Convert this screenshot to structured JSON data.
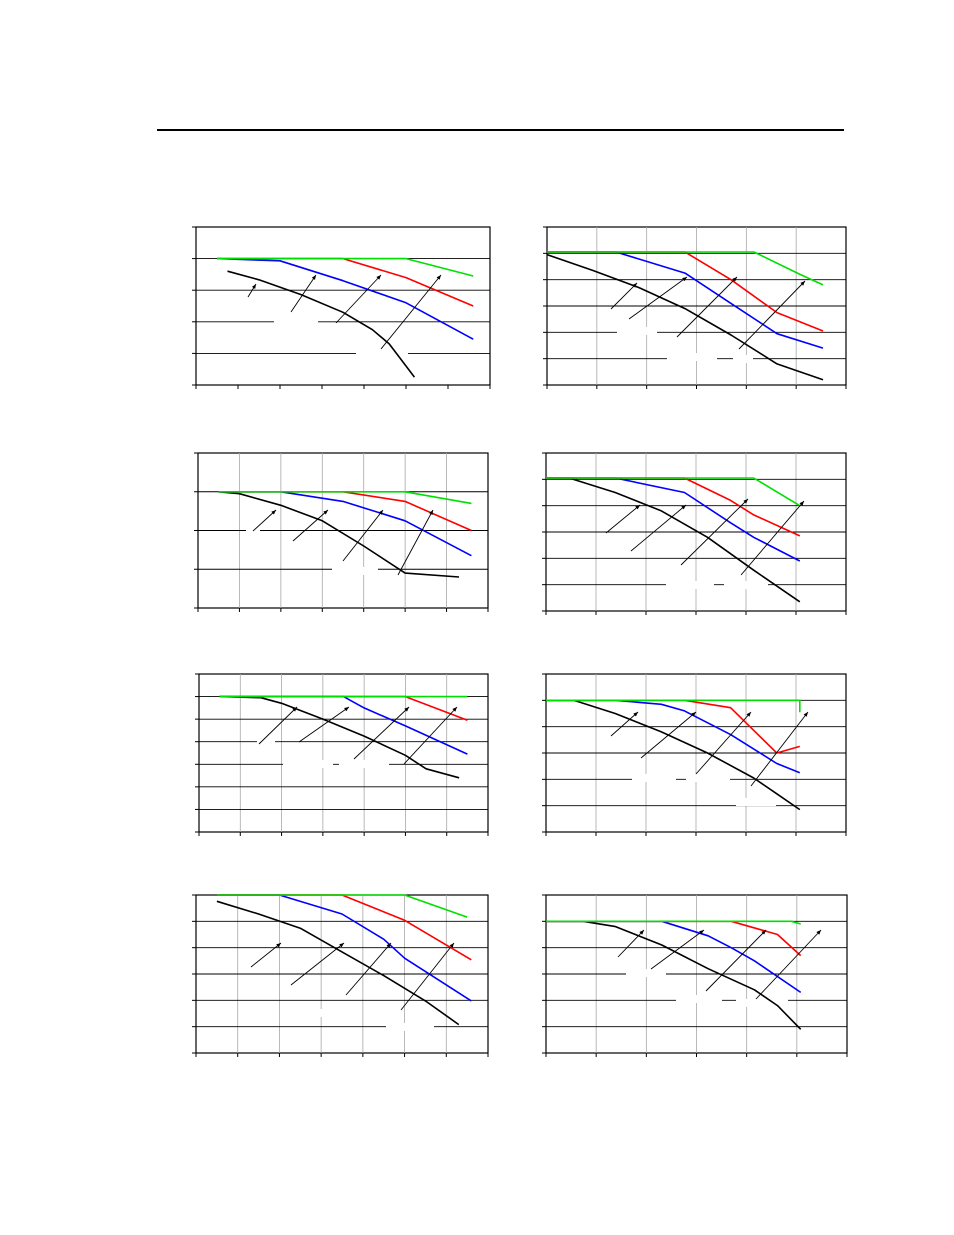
{
  "colors": {
    "black_series": "#000000",
    "blue_series": "#0000ff",
    "red_series": "#ff0000",
    "green_series": "#00e000",
    "grid": "#000000",
    "vertical_grid": "#a8a8a8"
  },
  "chart_data": [
    {
      "type": "line",
      "title": "",
      "xlabel": "",
      "ylabel": "",
      "xlim": [
        0,
        7
      ],
      "ylim": [
        0,
        5
      ],
      "x_ticks": 7,
      "y_ticks": 5,
      "grid": "horizontal",
      "legend": "none",
      "series": [
        {
          "color": "#000000",
          "points": [
            [
              0.75,
              3.6
            ],
            [
              1.5,
              3.33
            ],
            [
              2.5,
              2.86
            ],
            [
              3.5,
              2.3
            ],
            [
              4.2,
              1.75
            ],
            [
              4.6,
              1.3
            ],
            [
              5.0,
              0.6
            ],
            [
              5.2,
              0.25
            ]
          ]
        },
        {
          "color": "#0000ff",
          "points": [
            [
              0.5,
              4.0
            ],
            [
              2.0,
              3.93
            ],
            [
              3.5,
              3.3
            ],
            [
              5.0,
              2.6
            ],
            [
              6.6,
              1.45
            ]
          ]
        },
        {
          "color": "#ff0000",
          "points": [
            [
              0.5,
              4.0
            ],
            [
              3.5,
              4.0
            ],
            [
              5.0,
              3.4
            ],
            [
              6.6,
              2.5
            ]
          ]
        },
        {
          "color": "#00e000",
          "points": [
            [
              0.5,
              4.0
            ],
            [
              5.0,
              4.0
            ],
            [
              6.6,
              3.45
            ]
          ]
        }
      ]
    },
    {
      "type": "line",
      "title": "",
      "xlabel": "",
      "ylabel": "",
      "xlim": [
        0,
        6.5
      ],
      "ylim": [
        0,
        6
      ],
      "x_ticks": 6,
      "y_ticks": 6,
      "grid": "both",
      "legend": "none",
      "series": [
        {
          "color": "#000000",
          "points": [
            [
              0.0,
              4.95
            ],
            [
              1.0,
              4.35
            ],
            [
              2.0,
              3.7
            ],
            [
              3.0,
              2.9
            ],
            [
              4.0,
              1.9
            ],
            [
              5.0,
              0.8
            ],
            [
              6.0,
              0.2
            ]
          ]
        },
        {
          "color": "#0000ff",
          "points": [
            [
              0.0,
              5.05
            ],
            [
              1.5,
              5.05
            ],
            [
              3.0,
              4.25
            ],
            [
              4.0,
              3.1
            ],
            [
              5.0,
              1.95
            ],
            [
              6.0,
              1.4
            ]
          ]
        },
        {
          "color": "#ff0000",
          "points": [
            [
              0.0,
              5.05
            ],
            [
              3.0,
              5.05
            ],
            [
              4.0,
              4.0
            ],
            [
              5.0,
              2.75
            ],
            [
              6.0,
              2.05
            ]
          ]
        },
        {
          "color": "#00e000",
          "points": [
            [
              0.0,
              5.05
            ],
            [
              4.5,
              5.05
            ],
            [
              5.5,
              4.2
            ],
            [
              6.0,
              3.8
            ]
          ]
        }
      ]
    },
    {
      "type": "line",
      "title": "",
      "xlabel": "",
      "ylabel": "",
      "xlim": [
        0,
        7
      ],
      "ylim": [
        0,
        4
      ],
      "x_ticks": 7,
      "y_ticks": 4,
      "grid": "both",
      "legend": "none",
      "series": [
        {
          "color": "#000000",
          "points": [
            [
              0.5,
              3.0
            ],
            [
              1.0,
              2.95
            ],
            [
              2.0,
              2.65
            ],
            [
              3.0,
              2.25
            ],
            [
              4.0,
              1.6
            ],
            [
              5.0,
              0.9
            ],
            [
              6.3,
              0.8
            ]
          ]
        },
        {
          "color": "#0000ff",
          "points": [
            [
              0.5,
              3.0
            ],
            [
              2.0,
              3.0
            ],
            [
              3.5,
              2.75
            ],
            [
              5.0,
              2.25
            ],
            [
              6.6,
              1.35
            ]
          ]
        },
        {
          "color": "#ff0000",
          "points": [
            [
              0.5,
              3.0
            ],
            [
              3.5,
              3.0
            ],
            [
              5.0,
              2.75
            ],
            [
              6.6,
              2.0
            ]
          ]
        },
        {
          "color": "#00e000",
          "points": [
            [
              0.5,
              3.0
            ],
            [
              5.0,
              3.0
            ],
            [
              6.6,
              2.7
            ]
          ]
        }
      ]
    },
    {
      "type": "line",
      "title": "",
      "xlabel": "",
      "ylabel": "",
      "xlim": [
        0,
        6.5
      ],
      "ylim": [
        0,
        6
      ],
      "x_ticks": 6,
      "y_ticks": 6,
      "grid": "both",
      "legend": "none",
      "series": [
        {
          "color": "#000000",
          "points": [
            [
              0.0,
              5.05
            ],
            [
              0.5,
              5.05
            ],
            [
              1.5,
              4.5
            ],
            [
              2.5,
              3.8
            ],
            [
              3.5,
              2.8
            ],
            [
              4.5,
              1.55
            ],
            [
              5.5,
              0.35
            ]
          ]
        },
        {
          "color": "#0000ff",
          "points": [
            [
              0.0,
              5.05
            ],
            [
              1.5,
              5.05
            ],
            [
              3.0,
              4.5
            ],
            [
              4.0,
              3.35
            ],
            [
              4.5,
              2.8
            ],
            [
              5.5,
              1.9
            ]
          ]
        },
        {
          "color": "#ff0000",
          "points": [
            [
              0.0,
              5.05
            ],
            [
              3.0,
              5.05
            ],
            [
              4.0,
              4.2
            ],
            [
              4.5,
              3.65
            ],
            [
              5.5,
              2.85
            ]
          ]
        },
        {
          "color": "#00e000",
          "points": [
            [
              0.0,
              5.05
            ],
            [
              4.5,
              5.05
            ],
            [
              5.5,
              4.0
            ]
          ]
        }
      ]
    },
    {
      "type": "line",
      "title": "",
      "xlabel": "",
      "ylabel": "",
      "xlim": [
        0,
        7
      ],
      "ylim": [
        0,
        7
      ],
      "x_ticks": 7,
      "y_ticks": 7,
      "grid": "both",
      "legend": "none",
      "series": [
        {
          "color": "#000000",
          "points": [
            [
              0.5,
              6.0
            ],
            [
              1.5,
              5.95
            ],
            [
              2.0,
              5.7
            ],
            [
              3.0,
              5.0
            ],
            [
              4.0,
              4.25
            ],
            [
              5.0,
              3.4
            ],
            [
              5.5,
              2.8
            ],
            [
              6.3,
              2.4
            ]
          ]
        },
        {
          "color": "#0000ff",
          "points": [
            [
              0.5,
              6.0
            ],
            [
              3.5,
              6.0
            ],
            [
              4.0,
              5.5
            ],
            [
              5.0,
              4.7
            ],
            [
              6.5,
              3.45
            ]
          ]
        },
        {
          "color": "#ff0000",
          "points": [
            [
              0.5,
              6.0
            ],
            [
              5.0,
              6.0
            ],
            [
              6.5,
              4.95
            ]
          ]
        },
        {
          "color": "#00e000",
          "points": [
            [
              0.5,
              6.0
            ],
            [
              6.5,
              6.0
            ]
          ]
        }
      ]
    },
    {
      "type": "line",
      "title": "",
      "xlabel": "",
      "ylabel": "",
      "xlim": [
        0,
        6.5
      ],
      "ylim": [
        0,
        6
      ],
      "x_ticks": 6,
      "y_ticks": 6,
      "grid": "both",
      "legend": "none",
      "series": [
        {
          "color": "#000000",
          "points": [
            [
              0.0,
              5.0
            ],
            [
              0.6,
              5.0
            ],
            [
              1.5,
              4.5
            ],
            [
              2.5,
              3.8
            ],
            [
              3.5,
              3.0
            ],
            [
              4.5,
              2.05
            ],
            [
              5.0,
              1.45
            ],
            [
              5.5,
              0.85
            ]
          ]
        },
        {
          "color": "#0000ff",
          "points": [
            [
              0.0,
              5.0
            ],
            [
              1.5,
              5.0
            ],
            [
              2.5,
              4.85
            ],
            [
              3.0,
              4.6
            ],
            [
              4.0,
              3.7
            ],
            [
              5.0,
              2.6
            ],
            [
              5.5,
              2.25
            ]
          ]
        },
        {
          "color": "#ff0000",
          "points": [
            [
              0.0,
              5.0
            ],
            [
              3.0,
              5.0
            ],
            [
              4.0,
              4.72
            ],
            [
              5.0,
              3.0
            ],
            [
              5.5,
              3.25
            ]
          ]
        },
        {
          "color": "#00e000",
          "points": [
            [
              0.0,
              5.0
            ],
            [
              5.5,
              5.0
            ],
            [
              5.5,
              4.55
            ]
          ]
        }
      ]
    },
    {
      "type": "line",
      "title": "",
      "xlabel": "",
      "ylabel": "",
      "xlim": [
        0,
        7
      ],
      "ylim": [
        0,
        5
      ],
      "x_ticks": 7,
      "y_ticks": 6,
      "grid": "both",
      "legend": "none",
      "series": [
        {
          "color": "#000000",
          "points": [
            [
              0.5,
              4.8
            ],
            [
              1.5,
              4.4
            ],
            [
              2.5,
              3.95
            ],
            [
              3.5,
              3.2
            ],
            [
              4.5,
              2.45
            ],
            [
              5.5,
              1.65
            ],
            [
              6.3,
              0.9
            ]
          ]
        },
        {
          "color": "#0000ff",
          "points": [
            [
              0.5,
              5.0
            ],
            [
              2.0,
              5.0
            ],
            [
              3.5,
              4.4
            ],
            [
              4.5,
              3.6
            ],
            [
              5.0,
              3.0
            ],
            [
              6.6,
              1.65
            ]
          ]
        },
        {
          "color": "#ff0000",
          "points": [
            [
              0.5,
              5.0
            ],
            [
              3.5,
              5.0
            ],
            [
              5.0,
              4.2
            ],
            [
              6.6,
              2.95
            ]
          ]
        },
        {
          "color": "#00e000",
          "points": [
            [
              0.5,
              5.0
            ],
            [
              5.0,
              5.0
            ],
            [
              6.5,
              4.3
            ]
          ]
        }
      ]
    },
    {
      "type": "line",
      "title": "",
      "xlabel": "",
      "ylabel": "",
      "xlim": [
        0,
        6.5
      ],
      "ylim": [
        0,
        6
      ],
      "x_ticks": 6,
      "y_ticks": 6,
      "grid": "both",
      "legend": "none",
      "series": [
        {
          "color": "#000000",
          "points": [
            [
              0.0,
              5.0
            ],
            [
              0.8,
              5.0
            ],
            [
              1.5,
              4.8
            ],
            [
              2.5,
              4.1
            ],
            [
              3.5,
              3.2
            ],
            [
              4.5,
              2.4
            ],
            [
              5.0,
              1.8
            ],
            [
              5.5,
              0.9
            ]
          ]
        },
        {
          "color": "#0000ff",
          "points": [
            [
              0.0,
              5.0
            ],
            [
              2.5,
              5.0
            ],
            [
              3.5,
              4.45
            ],
            [
              4.0,
              4.0
            ],
            [
              4.5,
              3.5
            ],
            [
              5.5,
              2.3
            ]
          ]
        },
        {
          "color": "#ff0000",
          "points": [
            [
              0.0,
              5.0
            ],
            [
              4.0,
              5.0
            ],
            [
              5.0,
              4.5
            ],
            [
              5.5,
              3.7
            ]
          ]
        },
        {
          "color": "#00e000",
          "points": [
            [
              0.0,
              5.0
            ],
            [
              5.3,
              5.0
            ],
            [
              5.5,
              4.9
            ]
          ]
        }
      ]
    }
  ]
}
